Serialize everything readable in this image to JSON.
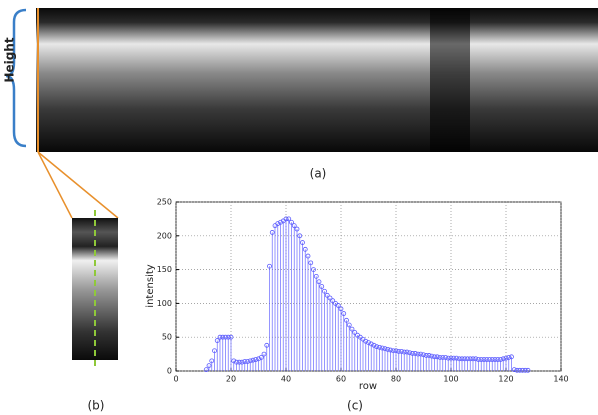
{
  "figure_labels": {
    "height": "Height",
    "a": "(a)",
    "b": "(b)",
    "c": "(c)"
  },
  "chart_data": {
    "type": "stem",
    "x_label": "row",
    "y_label": "intensity",
    "x": [
      11,
      12,
      13,
      14,
      15,
      16,
      17,
      18,
      19,
      20,
      21,
      22,
      23,
      24,
      25,
      26,
      27,
      28,
      29,
      30,
      31,
      32,
      33,
      34,
      35,
      36,
      37,
      38,
      39,
      40,
      41,
      42,
      43,
      44,
      45,
      46,
      47,
      48,
      49,
      50,
      51,
      52,
      53,
      54,
      55,
      56,
      57,
      58,
      59,
      60,
      61,
      62,
      63,
      64,
      65,
      66,
      67,
      68,
      69,
      70,
      71,
      72,
      73,
      74,
      75,
      76,
      77,
      78,
      79,
      80,
      81,
      82,
      83,
      84,
      85,
      86,
      87,
      88,
      89,
      90,
      91,
      92,
      93,
      94,
      95,
      96,
      97,
      98,
      99,
      100,
      101,
      102,
      103,
      104,
      105,
      106,
      107,
      108,
      109,
      110,
      111,
      112,
      113,
      114,
      115,
      116,
      117,
      118,
      119,
      120,
      121,
      122,
      123,
      124,
      125,
      126,
      127,
      128
    ],
    "values": [
      2,
      8,
      15,
      30,
      45,
      50,
      50,
      50,
      50,
      50,
      15,
      13,
      13,
      13,
      14,
      14,
      15,
      16,
      17,
      18,
      20,
      25,
      38,
      155,
      205,
      215,
      218,
      220,
      222,
      225,
      225,
      220,
      215,
      210,
      200,
      190,
      180,
      170,
      160,
      150,
      140,
      132,
      125,
      118,
      112,
      108,
      104,
      100,
      97,
      92,
      85,
      75,
      68,
      62,
      57,
      53,
      50,
      47,
      44,
      42,
      40,
      38,
      36,
      35,
      34,
      33,
      32,
      31,
      30,
      30,
      29,
      29,
      28,
      28,
      27,
      26,
      26,
      25,
      25,
      24,
      23,
      23,
      22,
      21,
      21,
      20,
      20,
      20,
      19,
      19,
      19,
      19,
      18,
      18,
      18,
      18,
      18,
      18,
      18,
      17,
      17,
      17,
      17,
      17,
      17,
      17,
      17,
      17,
      18,
      19,
      20,
      21,
      2,
      1,
      1,
      1,
      1,
      1
    ],
    "color": "#5a5aff",
    "xlim": [
      0,
      140
    ],
    "xticks": [
      0,
      20,
      40,
      60,
      80,
      100,
      120,
      140
    ],
    "ylim": [
      0,
      250
    ],
    "yticks": [
      0,
      50,
      100,
      150,
      200,
      250
    ],
    "grid": true
  }
}
